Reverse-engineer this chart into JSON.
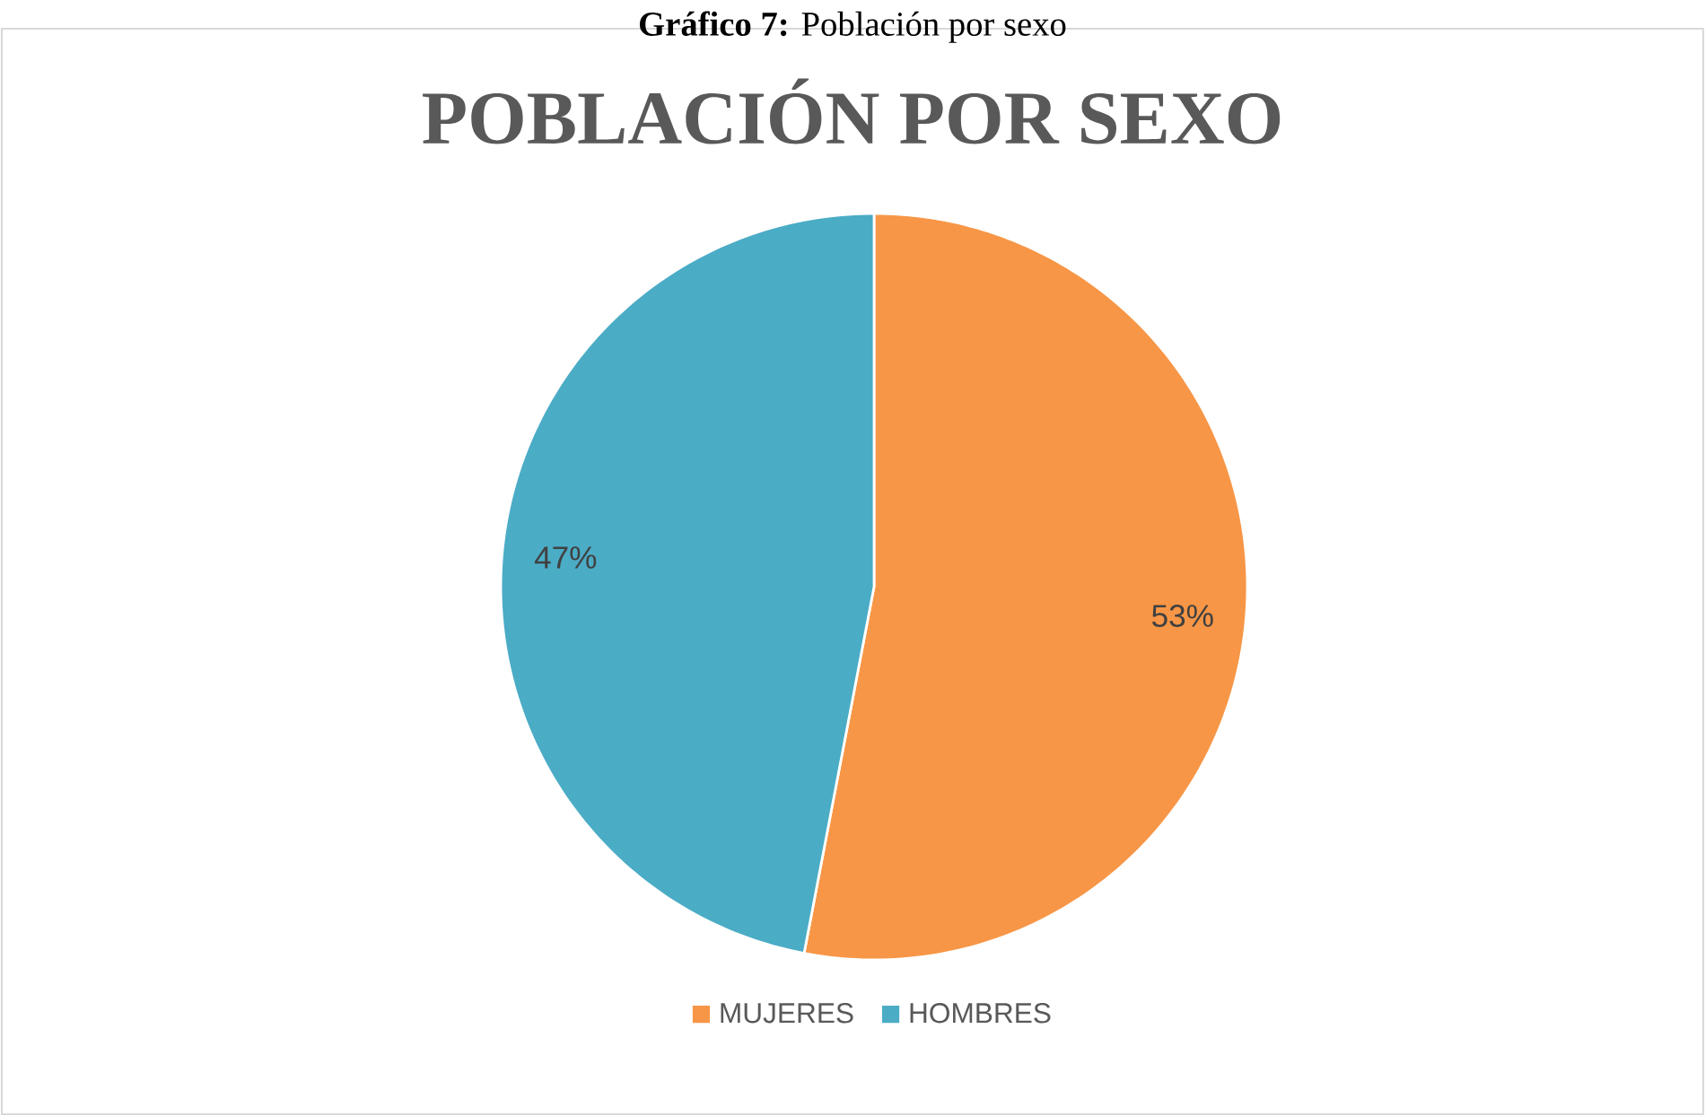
{
  "chart_data": {
    "type": "pie",
    "title": "POBLACIÓN POR SEXO",
    "annotations": [
      "**Gráfico 7:** Población por sexo"
    ],
    "categories": [
      "MUJERES",
      "HOMBRES"
    ],
    "values": [
      53,
      47
    ],
    "value_labels": [
      "53%",
      "47%"
    ],
    "colors": [
      "#f79646",
      "#4bacc6"
    ],
    "legend": "bottom"
  }
}
